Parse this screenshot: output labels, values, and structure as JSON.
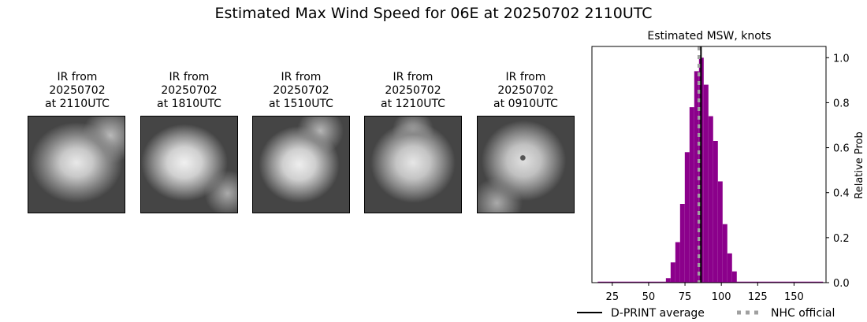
{
  "figure": {
    "title": "Estimated Max Wind Speed for 06E at 20250702 2110UTC"
  },
  "ir_panels": [
    {
      "line1": "IR from",
      "line2": "20250702",
      "line3": "at 2110UTC"
    },
    {
      "line1": "IR from",
      "line2": "20250702",
      "line3": "at 1810UTC"
    },
    {
      "line1": "IR from",
      "line2": "20250702",
      "line3": "at 1510UTC"
    },
    {
      "line1": "IR from",
      "line2": "20250702",
      "line3": "at 1210UTC"
    },
    {
      "line1": "IR from",
      "line2": "20250702",
      "line3": "at 0910UTC"
    }
  ],
  "chart_data": {
    "type": "bar",
    "title": "Estimated MSW, knots",
    "xlabel": "",
    "ylabel": "Relative Prob",
    "xlim": [
      11,
      172
    ],
    "ylim": [
      0,
      1.05
    ],
    "xticks": [
      25,
      50,
      75,
      100,
      125,
      150
    ],
    "yticks": [
      0.0,
      0.2,
      0.4,
      0.6,
      0.8,
      1.0
    ],
    "bin_width": 3.25,
    "color": "#8b008b",
    "bins": [
      {
        "x": 63.5,
        "value": 0.02
      },
      {
        "x": 66.75,
        "value": 0.09
      },
      {
        "x": 70.0,
        "value": 0.18
      },
      {
        "x": 73.25,
        "value": 0.35
      },
      {
        "x": 76.5,
        "value": 0.58
      },
      {
        "x": 79.75,
        "value": 0.78
      },
      {
        "x": 83.0,
        "value": 0.94
      },
      {
        "x": 86.25,
        "value": 1.0
      },
      {
        "x": 89.5,
        "value": 0.88
      },
      {
        "x": 92.75,
        "value": 0.74
      },
      {
        "x": 96.0,
        "value": 0.63
      },
      {
        "x": 99.25,
        "value": 0.45
      },
      {
        "x": 102.5,
        "value": 0.26
      },
      {
        "x": 105.75,
        "value": 0.13
      },
      {
        "x": 109.0,
        "value": 0.05
      }
    ],
    "baseline_range": [
      15,
      170
    ],
    "dprint_average": 86,
    "nhc_official": 85,
    "legend": {
      "placement": "bottom",
      "entries": [
        {
          "label": "D-PRINT average",
          "style": "solid",
          "color": "#000000"
        },
        {
          "label": "NHC official",
          "style": "dotted",
          "color": "#a0a0a0"
        }
      ]
    }
  }
}
